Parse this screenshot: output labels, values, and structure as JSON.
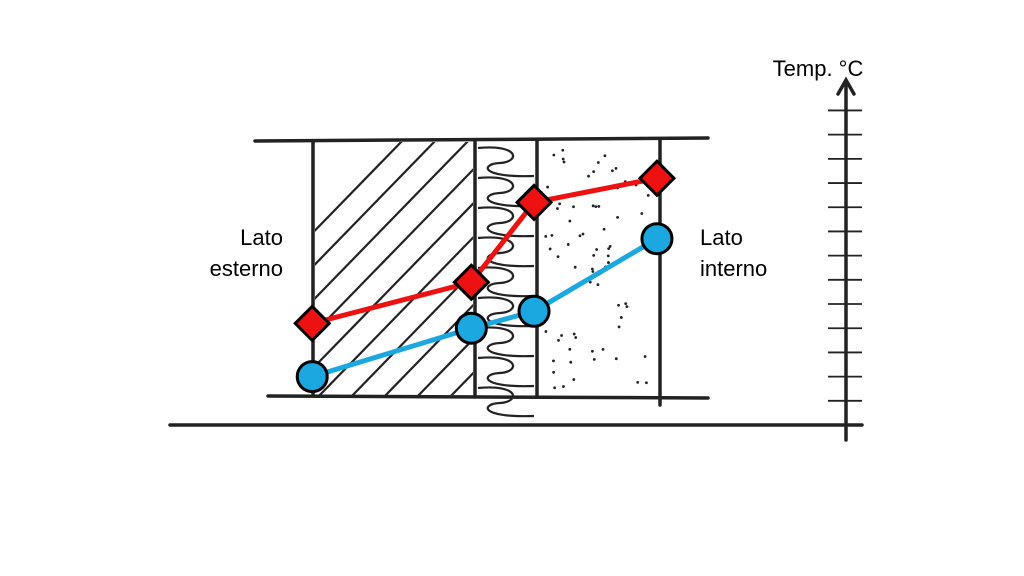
{
  "chart_data": {
    "type": "line",
    "title": "Temp. °C",
    "left_label": [
      "Lato",
      "esterno"
    ],
    "right_label": [
      "Lato",
      "interno"
    ],
    "x": [
      5.9,
      12.5,
      15.1,
      20.2
    ],
    "xlim": [
      0,
      28
    ],
    "ylim": [
      0,
      14.3
    ],
    "yticks": [
      1,
      2,
      3,
      4,
      5,
      6,
      7,
      8,
      9,
      10,
      11,
      12,
      13
    ],
    "series": [
      {
        "color": "#ee1111",
        "marker": "diamond",
        "values": [
          4.2,
          5.9,
          9.2,
          10.2
        ]
      },
      {
        "color": "#1ba8e0",
        "marker": "circle",
        "values": [
          2.0,
          4.0,
          4.7,
          7.7
        ]
      }
    ]
  }
}
